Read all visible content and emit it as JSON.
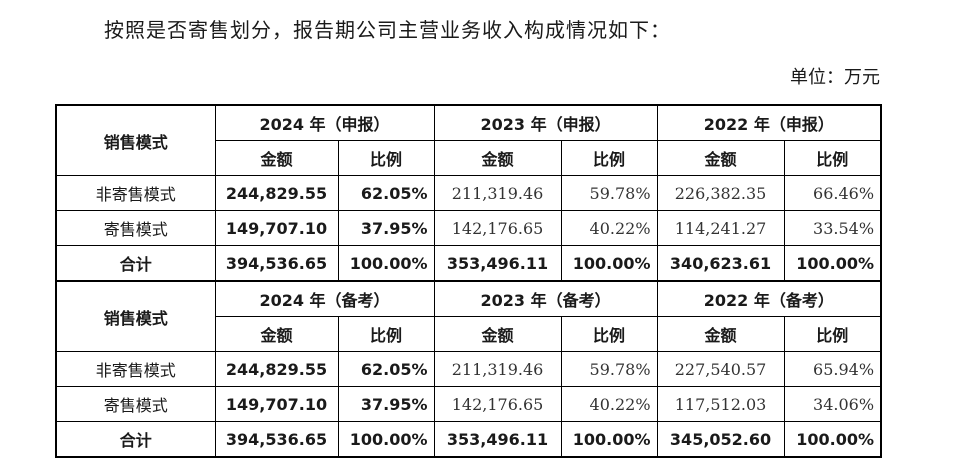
{
  "intro_text": "按照是否寄售划分，报告期公司主营业务收入构成情况如下：",
  "unit_text": "单位：万元",
  "row_header": "销售模式",
  "sub_headers": {
    "amount": "金额",
    "ratio": "比例"
  },
  "sections": [
    {
      "periods": [
        "2024 年（申报）",
        "2023 年（申报）",
        "2022 年（申报）"
      ],
      "rows": [
        {
          "label": "非寄售模式",
          "values": [
            "244,829.55",
            "62.05%",
            "211,319.46",
            "59.78%",
            "226,382.35",
            "66.46%"
          ]
        },
        {
          "label": "寄售模式",
          "values": [
            "149,707.10",
            "37.95%",
            "142,176.65",
            "40.22%",
            "114,241.27",
            "33.54%"
          ]
        },
        {
          "label": "合计",
          "values": [
            "394,536.65",
            "100.00%",
            "353,496.11",
            "100.00%",
            "340,623.61",
            "100.00%"
          ]
        }
      ]
    },
    {
      "periods": [
        "2024 年（备考）",
        "2023 年（备考）",
        "2022 年（备考）"
      ],
      "rows": [
        {
          "label": "非寄售模式",
          "values": [
            "244,829.55",
            "62.05%",
            "211,319.46",
            "59.78%",
            "227,540.57",
            "65.94%"
          ]
        },
        {
          "label": "寄售模式",
          "values": [
            "149,707.10",
            "37.95%",
            "142,176.65",
            "40.22%",
            "117,512.03",
            "34.06%"
          ]
        },
        {
          "label": "合计",
          "values": [
            "394,536.65",
            "100.00%",
            "353,496.11",
            "100.00%",
            "345,052.60",
            "100.00%"
          ]
        }
      ]
    }
  ]
}
